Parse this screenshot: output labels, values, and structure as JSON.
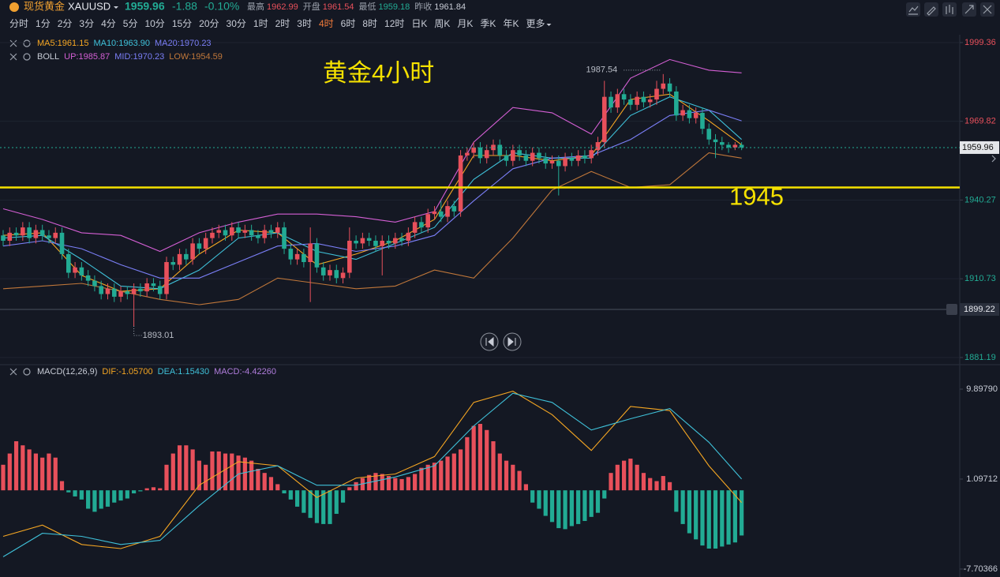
{
  "header": {
    "name": "现货黄金",
    "code": "XAUUSD",
    "price": 1959.96,
    "change": -1.88,
    "change_pct": "-0.10%",
    "stats": [
      {
        "label": "最高",
        "value": 1962.99
      },
      {
        "label": "开盘",
        "value": 1961.54
      },
      {
        "label": "最低",
        "value": 1959.18
      },
      {
        "label": "昨收",
        "value": 1961.84
      }
    ],
    "timeframes": [
      "分时",
      "1分",
      "2分",
      "3分",
      "4分",
      "5分",
      "10分",
      "15分",
      "20分",
      "30分",
      "1时",
      "2时",
      "3时",
      "4时",
      "6时",
      "8时",
      "12时",
      "日K",
      "周K",
      "月K",
      "季K",
      "年K",
      "更多"
    ],
    "active_timeframe": "4时"
  },
  "chart_data": [
    {
      "type": "candlestick",
      "title": "黄金4小时",
      "up_color": "#e8505b",
      "down_color": "#22ab94",
      "open": [
        1927,
        1925,
        1928,
        1927,
        1930,
        1926,
        1929,
        1927,
        1926,
        1928,
        1920,
        1913,
        1915,
        1912,
        1910,
        1908,
        1905,
        1907,
        1904,
        1906,
        1905,
        1907,
        1906,
        1909,
        1908,
        1905,
        1917,
        1916,
        1920,
        1918,
        1924,
        1922,
        1926,
        1928,
        1929,
        1927,
        1930,
        1928,
        1929,
        1927,
        1926,
        1929,
        1928,
        1930,
        1922,
        1918,
        1920,
        1917,
        1924,
        1915,
        1912,
        1914,
        1911,
        1913,
        1925,
        1924,
        1926,
        1925,
        1923,
        1925,
        1924,
        1926,
        1925,
        1928,
        1932,
        1930,
        1935,
        1936,
        1934,
        1938,
        1936,
        1957,
        1958,
        1960,
        1956,
        1959,
        1961,
        1957,
        1955,
        1959,
        1957,
        1955,
        1958,
        1956,
        1954,
        1955,
        1953,
        1956,
        1955,
        1957,
        1956,
        1959,
        1962,
        1979,
        1975,
        1980,
        1978,
        1976,
        1979,
        1977,
        1978,
        1982,
        1984,
        1981,
        1972,
        1974,
        1971,
        1973,
        1967,
        1963,
        1962,
        1961,
        1960,
        1961
      ],
      "high": [
        1929,
        1930,
        1930,
        1932,
        1932,
        1931,
        1931,
        1929,
        1930,
        1930,
        1922,
        1917,
        1917,
        1914,
        1912,
        1910,
        1909,
        1909,
        1908,
        1908,
        1909,
        1909,
        1911,
        1911,
        1910,
        1919,
        1919,
        1922,
        1922,
        1926,
        1926,
        1928,
        1930,
        1931,
        1931,
        1932,
        1932,
        1931,
        1931,
        1929,
        1931,
        1931,
        1932,
        1932,
        1924,
        1922,
        1922,
        1930,
        1926,
        1917,
        1916,
        1916,
        1915,
        1930,
        1927,
        1928,
        1928,
        1927,
        1927,
        1927,
        1928,
        1928,
        1930,
        1934,
        1934,
        1937,
        1938,
        1940,
        1940,
        1940,
        1959,
        1960,
        1962,
        1962,
        1961,
        1963,
        1963,
        1959,
        1961,
        1961,
        1959,
        1960,
        1960,
        1958,
        1957,
        1957,
        1958,
        1958,
        1959,
        1959,
        1961,
        1964,
        1985,
        1981,
        1982,
        1982,
        1980,
        1981,
        1981,
        1980,
        1985,
        1987.54,
        1986,
        1983,
        1976,
        1976,
        1975,
        1975,
        1969,
        1965,
        1964,
        1962,
        1962,
        1962
      ],
      "low": [
        1923,
        1923,
        1925,
        1925,
        1924,
        1924,
        1925,
        1924,
        1924,
        1918,
        1911,
        1911,
        1910,
        1908,
        1906,
        1903,
        1903,
        1902,
        1902,
        1903,
        1893.01,
        1904,
        1904,
        1906,
        1903,
        1903,
        1914,
        1914,
        1916,
        1916,
        1920,
        1920,
        1924,
        1926,
        1925,
        1925,
        1926,
        1926,
        1925,
        1924,
        1924,
        1926,
        1926,
        1920,
        1916,
        1916,
        1915,
        1902,
        1913,
        1910,
        1910,
        1909,
        1909,
        1911,
        1922,
        1922,
        1923,
        1921,
        1912,
        1922,
        1922,
        1923,
        1923,
        1926,
        1928,
        1928,
        1933,
        1932,
        1932,
        1934,
        1934,
        1955,
        1956,
        1954,
        1954,
        1957,
        1955,
        1953,
        1953,
        1955,
        1953,
        1953,
        1954,
        1952,
        1952,
        1942,
        1951,
        1953,
        1953,
        1954,
        1954,
        1957,
        1960,
        1973,
        1973,
        1976,
        1974,
        1974,
        1975,
        1975,
        1976,
        1980,
        1979,
        1970,
        1970,
        1969,
        1969,
        1965,
        1961,
        1956,
        1959,
        1958,
        1959,
        1959
      ],
      "close": [
        1925,
        1928,
        1927,
        1930,
        1926,
        1929,
        1927,
        1926,
        1928,
        1920,
        1913,
        1915,
        1912,
        1910,
        1908,
        1905,
        1907,
        1904,
        1906,
        1905,
        1907,
        1906,
        1909,
        1908,
        1905,
        1917,
        1916,
        1920,
        1918,
        1924,
        1922,
        1926,
        1928,
        1929,
        1927,
        1930,
        1928,
        1929,
        1927,
        1926,
        1929,
        1928,
        1930,
        1922,
        1918,
        1920,
        1917,
        1924,
        1915,
        1912,
        1914,
        1911,
        1913,
        1925,
        1924,
        1926,
        1925,
        1923,
        1925,
        1924,
        1926,
        1925,
        1928,
        1932,
        1930,
        1935,
        1936,
        1934,
        1938,
        1936,
        1957,
        1958,
        1960,
        1956,
        1959,
        1961,
        1957,
        1955,
        1959,
        1957,
        1955,
        1958,
        1956,
        1954,
        1955,
        1953,
        1956,
        1955,
        1957,
        1956,
        1959,
        1962,
        1979,
        1975,
        1980,
        1978,
        1976,
        1979,
        1977,
        1978,
        1982,
        1984,
        1981,
        1972,
        1974,
        1971,
        1973,
        1967,
        1963,
        1962,
        1961,
        1960,
        1961,
        1960
      ],
      "lines": [
        {
          "name": "MA5:1961.15",
          "color": "#f5a623",
          "x": [
            0,
            6,
            12,
            18,
            24,
            30,
            36,
            42,
            48,
            54,
            60,
            66,
            72,
            78,
            84,
            90,
            96,
            102,
            108,
            113
          ],
          "values": [
            1927,
            1928,
            1912,
            1906,
            1907,
            1920,
            1929,
            1928,
            1916,
            1920,
            1925,
            1933,
            1957,
            1957,
            1955,
            1957,
            1978,
            1980,
            1970,
            1961
          ]
        },
        {
          "name": "MA10:1963.90",
          "color": "#3fc1d9",
          "x": [
            0,
            6,
            12,
            18,
            24,
            30,
            36,
            42,
            48,
            54,
            60,
            66,
            72,
            78,
            84,
            90,
            96,
            102,
            108,
            113
          ],
          "values": [
            1926,
            1927,
            1918,
            1908,
            1907,
            1914,
            1926,
            1928,
            1921,
            1918,
            1924,
            1930,
            1948,
            1958,
            1956,
            1956,
            1972,
            1979,
            1974,
            1963
          ]
        },
        {
          "name": "UP:1985.87",
          "color": "#d45fd4",
          "x": [
            0,
            6,
            12,
            18,
            24,
            30,
            36,
            42,
            48,
            54,
            60,
            66,
            72,
            78,
            84,
            90,
            96,
            102,
            108,
            113
          ],
          "values": [
            1937,
            1933,
            1928,
            1927,
            1921,
            1928,
            1932,
            1935,
            1935,
            1934,
            1932,
            1936,
            1962,
            1975,
            1973,
            1965,
            1986,
            1993,
            1989,
            1988
          ]
        },
        {
          "name": "MID:1970.23",
          "color": "#7b7ff7",
          "x": [
            0,
            6,
            12,
            18,
            24,
            30,
            36,
            42,
            48,
            54,
            60,
            66,
            72,
            78,
            84,
            90,
            96,
            102,
            108,
            113
          ],
          "values": [
            1923,
            1925,
            1922,
            1916,
            1911,
            1911,
            1917,
            1923,
            1924,
            1921,
            1923,
            1927,
            1940,
            1952,
            1956,
            1957,
            1963,
            1972,
            1974,
            1970
          ]
        },
        {
          "name": "LOW:1954.59",
          "color": "#c0773a",
          "x": [
            0,
            6,
            12,
            18,
            24,
            30,
            36,
            42,
            48,
            54,
            60,
            66,
            72,
            78,
            84,
            90,
            96,
            102,
            108,
            113
          ],
          "values": [
            1907,
            1908,
            1909,
            1906,
            1903,
            1901,
            1903,
            1911,
            1909,
            1907,
            1908,
            1914,
            1911,
            1926,
            1944,
            1951,
            1945,
            1946,
            1958,
            1956
          ]
        }
      ],
      "ma20_label": {
        "text": "MA20:1970.23",
        "color": "#7b7ff7"
      },
      "boll_label": "BOLL",
      "level": {
        "value": 1945,
        "color": "#f5e100"
      },
      "alert_line": 1899.22,
      "ylim": [
        1878.5,
        2002.3
      ],
      "yticks": [
        1881.19,
        1910.73,
        1940.27,
        1969.82,
        1999.36
      ],
      "grid": true
    },
    {
      "type": "macd",
      "title": "MACD(12,26,9)",
      "up_color": "#e8505b",
      "down_color": "#22ab94",
      "values": [
        2.5,
        3.6,
        4.8,
        4.4,
        4.0,
        3.6,
        3.2,
        3.6,
        3.2,
        0.9,
        -0.2,
        -0.6,
        -0.9,
        -1.8,
        -2.1,
        -1.8,
        -1.6,
        -1.2,
        -1.0,
        -0.8,
        -0.3,
        -0.1,
        0.2,
        0.3,
        0.2,
        2.5,
        3.6,
        4.4,
        4.4,
        4.0,
        2.9,
        2.5,
        3.8,
        3.8,
        3.6,
        3.6,
        3.4,
        3.2,
        2.9,
        2.1,
        1.7,
        1.3,
        0.6,
        -0.3,
        -0.9,
        -1.6,
        -2.2,
        -2.7,
        -3.2,
        -3.3,
        -3.3,
        -2.3,
        -1.2,
        0.3,
        0.8,
        1.2,
        1.5,
        1.7,
        1.6,
        1.4,
        1.2,
        1.1,
        1.3,
        1.6,
        2.2,
        2.5,
        2.7,
        2.9,
        3.3,
        3.6,
        4.0,
        5.2,
        6.3,
        6.5,
        5.9,
        4.8,
        3.6,
        2.9,
        2.5,
        1.9,
        0.6,
        -1.2,
        -1.8,
        -2.5,
        -3.1,
        -3.7,
        -3.8,
        -3.5,
        -3.3,
        -3.0,
        -2.6,
        -2.2,
        -0.8,
        1.7,
        2.5,
        2.9,
        3.1,
        2.5,
        1.7,
        1.2,
        0.9,
        1.4,
        0.8,
        -2.1,
        -3.3,
        -4.2,
        -4.8,
        -5.4,
        -5.7,
        -5.7,
        -5.5,
        -5.3,
        -5.1,
        -4.42
      ],
      "series": [
        {
          "name": "DIF:-1.05700",
          "color": "#f5a623",
          "x": [
            0,
            6,
            12,
            18,
            24,
            30,
            36,
            42,
            48,
            54,
            60,
            66,
            72,
            78,
            84,
            90,
            96,
            102,
            108,
            113
          ],
          "values": [
            -4.5,
            -3.4,
            -5.3,
            -5.7,
            -4.5,
            0.5,
            2.8,
            2.4,
            -0.7,
            1.2,
            1.6,
            3.3,
            8.6,
            9.7,
            7.4,
            3.9,
            8.2,
            7.8,
            2.4,
            -1.2
          ]
        },
        {
          "name": "DEA:1.15430",
          "color": "#3fc1d9",
          "x": [
            0,
            6,
            12,
            18,
            24,
            30,
            36,
            42,
            48,
            54,
            60,
            66,
            72,
            78,
            84,
            90,
            96,
            102,
            108,
            113
          ],
          "values": [
            -6.5,
            -4.2,
            -4.5,
            -5.3,
            -4.9,
            -1.5,
            1.6,
            2.4,
            0.5,
            0.5,
            1.3,
            2.4,
            6.3,
            9.5,
            8.6,
            5.9,
            7.0,
            8.0,
            4.7,
            1.1
          ]
        }
      ],
      "macd_label": {
        "text": "MACD:-4.42260",
        "color": "#b07ddc"
      },
      "ylim": [
        -8.48,
        12.06
      ],
      "yticks": [
        {
          "value": 9.8979,
          "label": "9.89790"
        },
        1.09712,
        -7.70366
      ]
    }
  ]
}
